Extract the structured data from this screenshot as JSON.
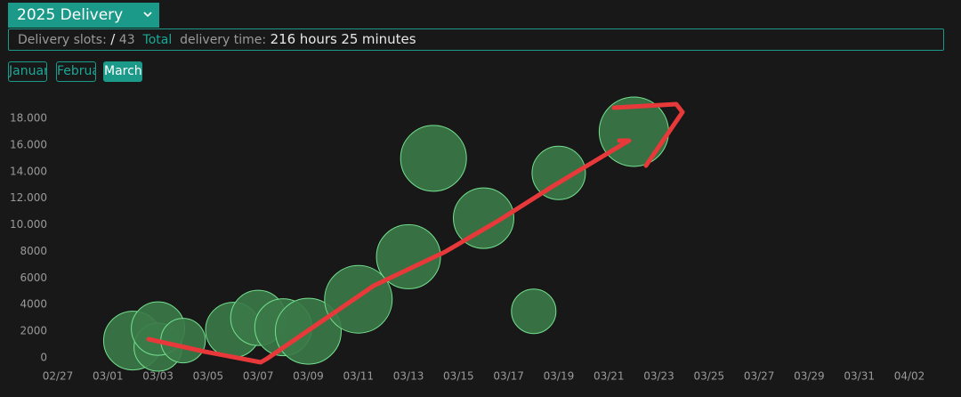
{
  "header": {
    "dropdown": "2025 Delivery"
  },
  "info": {
    "slots_label": "Delivery slots:",
    "slash": "/",
    "slots_total": "43",
    "total_label": "Total",
    "time_label": "delivery time:",
    "hours": "216",
    "hours_unit": "hours",
    "minutes": "25",
    "minutes_unit": "minutes"
  },
  "tabs": [
    "January",
    "February",
    "March"
  ],
  "active_tab": "March",
  "chart_data": {
    "type": "bubble",
    "x": [
      "03/02",
      "03/03",
      "03/03",
      "03/04",
      "03/06",
      "03/07",
      "03/08",
      "03/09",
      "03/11",
      "03/13",
      "03/14",
      "03/16",
      "03/18",
      "03/19",
      "03/22"
    ],
    "series": [
      {
        "color": "#3b7a48",
        "values": [
          1300,
          800,
          2200,
          1300,
          2100,
          3000,
          2300,
          2000,
          4400,
          7600,
          15000,
          10500,
          3500,
          13900,
          17000
        ],
        "sizes": [
          33,
          27,
          30,
          25,
          31,
          31,
          32,
          37,
          38,
          36,
          37,
          34,
          25,
          30,
          39
        ]
      }
    ],
    "xlim": [
      "02/27",
      "04/02"
    ],
    "xticks": [
      "02/27",
      "03/01",
      "03/03",
      "03/05",
      "03/07",
      "03/09",
      "03/11",
      "03/13",
      "03/15",
      "03/17",
      "03/19",
      "03/21",
      "03/23",
      "03/25",
      "03/27",
      "03/29",
      "03/31",
      "04/02"
    ],
    "ylim": [
      0,
      18000
    ],
    "yticks": [
      0,
      2000,
      4000,
      6000,
      8000,
      {
        "value": 10000,
        "label": "10.000"
      },
      {
        "value": 12000,
        "label": "12.000"
      },
      {
        "value": 14000,
        "label": "14.000"
      },
      {
        "value": 16000,
        "label": "16.000"
      },
      {
        "value": 18000,
        "label": "18.000"
      }
    ],
    "grid": false
  }
}
